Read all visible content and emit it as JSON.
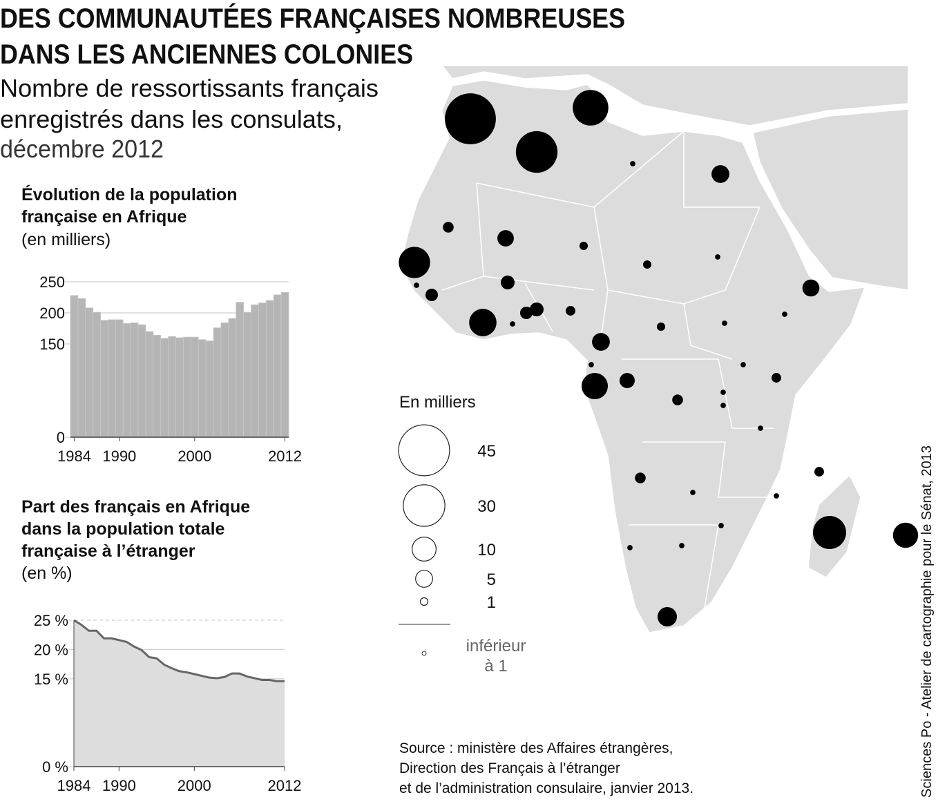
{
  "title": [
    "DES COMMUNAUTÉES FRANÇAISES NOMBREUSES",
    "DANS LES ANCIENNES COLONIES"
  ],
  "subtitle": [
    "Nombre de ressortissants français",
    "enregistrés dans les consulats,",
    "décembre 2012"
  ],
  "chart_data": [
    {
      "type": "bar",
      "title": [
        "Évolution de la population",
        "française en Afrique"
      ],
      "subtitle": "(en milliers)",
      "x": [
        1984,
        1985,
        1986,
        1987,
        1988,
        1989,
        1990,
        1991,
        1992,
        1993,
        1994,
        1995,
        1996,
        1997,
        1998,
        1999,
        2000,
        2001,
        2002,
        2003,
        2004,
        2005,
        2006,
        2007,
        2008,
        2009,
        2010,
        2011,
        2012
      ],
      "values": [
        228,
        223,
        208,
        201,
        188,
        189,
        189,
        183,
        184,
        181,
        170,
        164,
        159,
        162,
        160,
        161,
        161,
        157,
        155,
        176,
        184,
        191,
        217,
        201,
        213,
        216,
        220,
        229,
        233
      ],
      "color": "#b5b5b5",
      "xlim": [
        1983.5,
        2012.5
      ],
      "xticks": [
        1984,
        1990,
        2000,
        2012
      ],
      "ylim": [
        0,
        250
      ],
      "yticks": [
        0,
        150,
        200,
        250
      ]
    },
    {
      "type": "area",
      "title": [
        "Part des français en Afrique",
        "dans la population totale",
        "française à l’étranger"
      ],
      "subtitle": "(en %)",
      "x": [
        1984,
        1985,
        1986,
        1987,
        1988,
        1989,
        1990,
        1991,
        1992,
        1993,
        1994,
        1995,
        1996,
        1997,
        1998,
        1999,
        2000,
        2001,
        2002,
        2003,
        2004,
        2005,
        2006,
        2007,
        2008,
        2009,
        2010,
        2011,
        2012
      ],
      "values": [
        25,
        24.2,
        23.2,
        23.2,
        21.9,
        21.9,
        21.6,
        21.3,
        20.5,
        19.9,
        18.7,
        18.5,
        17.4,
        16.8,
        16.3,
        16.1,
        15.8,
        15.5,
        15.2,
        15.1,
        15.3,
        15.9,
        15.9,
        15.4,
        15.1,
        14.8,
        14.8,
        14.6,
        14.6
      ],
      "color": "#666666",
      "fill": "#dddddd",
      "xlim": [
        1984,
        2012
      ],
      "xticks": [
        1984,
        1990,
        2000,
        2012
      ],
      "ylim": [
        0,
        25
      ],
      "yticks": [
        {
          "value": 0,
          "label": "0 %"
        },
        {
          "value": 15,
          "label": "15 %"
        },
        {
          "value": 20,
          "label": "20 %"
        },
        {
          "value": 25,
          "label": "25 %"
        }
      ]
    }
  ],
  "map": {
    "type": "bubble",
    "color": "#000000",
    "legend_title": "En milliers",
    "legend_values": [
      45,
      30,
      10,
      5,
      1
    ],
    "legend_below": [
      "inférieur",
      "à 1"
    ],
    "values": [
      45,
      30,
      22,
      17,
      13,
      19,
      11,
      12,
      5.5,
      5.5,
      5,
      6.5,
      4,
      4.7,
      2,
      3.3,
      2.7,
      2.7,
      3.3,
      1.6,
      1.2,
      1.2,
      1.2,
      2,
      2,
      1.6,
      1.6,
      0.5,
      0.5,
      0.5,
      0.5,
      0.5,
      0.5,
      0.5,
      0.5,
      0.5,
      0.5,
      0.5,
      0.5,
      0.5,
      0.5,
      0.5,
      0.5
    ]
  },
  "source": [
    "Source : ministère des Affaires étrangères,",
    "Direction des Français à l’étranger",
    "et de l’administration consulaire, janvier 2013."
  ],
  "credit": "Sciences Po - Atelier de cartographie pour le Sénat, 2013"
}
